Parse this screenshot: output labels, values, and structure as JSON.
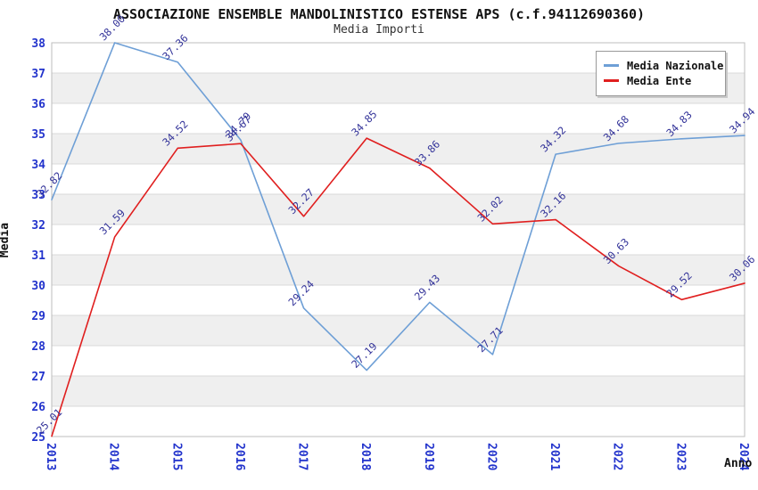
{
  "chart_data": {
    "type": "line",
    "title": "ASSOCIAZIONE ENSEMBLE MANDOLINISTICO ESTENSE APS (c.f.94112690360)",
    "subtitle": "Media Importi",
    "xlabel": "Anno",
    "ylabel": "Media",
    "categories": [
      "2013",
      "2014",
      "2015",
      "2016",
      "2017",
      "2018",
      "2019",
      "2020",
      "2021",
      "2022",
      "2023",
      "2024"
    ],
    "series": [
      {
        "name": "Media Nazionale",
        "color": "#6e9fd6",
        "values": [
          32.82,
          38.0,
          37.36,
          34.79,
          29.24,
          27.19,
          29.43,
          27.71,
          34.32,
          34.68,
          34.83,
          34.94
        ]
      },
      {
        "name": "Media Ente",
        "color": "#e01f1f",
        "values": [
          25.01,
          31.59,
          34.52,
          34.67,
          32.27,
          34.85,
          33.86,
          32.02,
          32.16,
          30.63,
          29.52,
          30.06
        ]
      }
    ],
    "ylim": [
      25,
      38
    ],
    "y_tick_step": 1,
    "grid": true,
    "legend_position": "top-right",
    "value_labels": true,
    "value_label_decimals": 2,
    "colors": {
      "value_label": "#333399",
      "axis_tick": "#2233cc",
      "gridline": "#d8d8d8",
      "band_alt": "#efefef",
      "band_main": "#ffffff",
      "plot_border": "#bcbcbc"
    }
  }
}
